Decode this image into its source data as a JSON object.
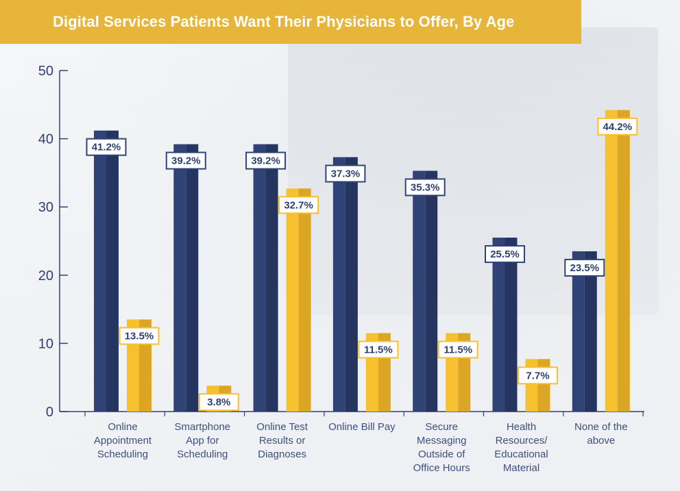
{
  "title": "Digital Services Patients Want Their Physicians to Offer, By Age",
  "colors": {
    "navy": "#2f4376",
    "navy_dark": "#253560",
    "gold": "#f7c02e",
    "gold_dark": "#dba624",
    "title_bg": "#e6b53a",
    "axis": "#2e4070"
  },
  "chart_data": {
    "type": "bar",
    "title": "Digital Services Patients Want Their Physicians to Offer, By Age",
    "categories": [
      [
        "Online",
        "Appointment",
        "Scheduling"
      ],
      [
        "Smartphone",
        "App for",
        "Scheduling"
      ],
      [
        "Online Test",
        "Results or",
        "Diagnoses"
      ],
      [
        "Online Bill Pay"
      ],
      [
        "Secure",
        "Messaging",
        "Outside of",
        "Office Hours"
      ],
      [
        "Health",
        "Resources/",
        "Educational",
        "Material"
      ],
      [
        "None of the",
        "above"
      ]
    ],
    "series": [
      {
        "values": [
          41.2,
          39.2,
          39.2,
          37.3,
          35.3,
          25.5,
          23.5
        ],
        "labels": [
          "41.2%",
          "39.2%",
          "39.2%",
          "37.3%",
          "35.3%",
          "25.5%",
          "23.5%"
        ],
        "color": "#2f4376"
      },
      {
        "values": [
          13.5,
          3.8,
          32.7,
          11.5,
          11.5,
          7.7,
          44.2
        ],
        "labels": [
          "13.5%",
          "3.8%",
          "32.7%",
          "11.5%",
          "11.5%",
          "7.7%",
          "44.2%"
        ],
        "color": "#f7c02e"
      }
    ],
    "yticks": [
      "0",
      "10",
      "20",
      "30",
      "40",
      "50"
    ],
    "ylim": [
      0,
      50
    ],
    "grid": false,
    "legend": "none"
  }
}
